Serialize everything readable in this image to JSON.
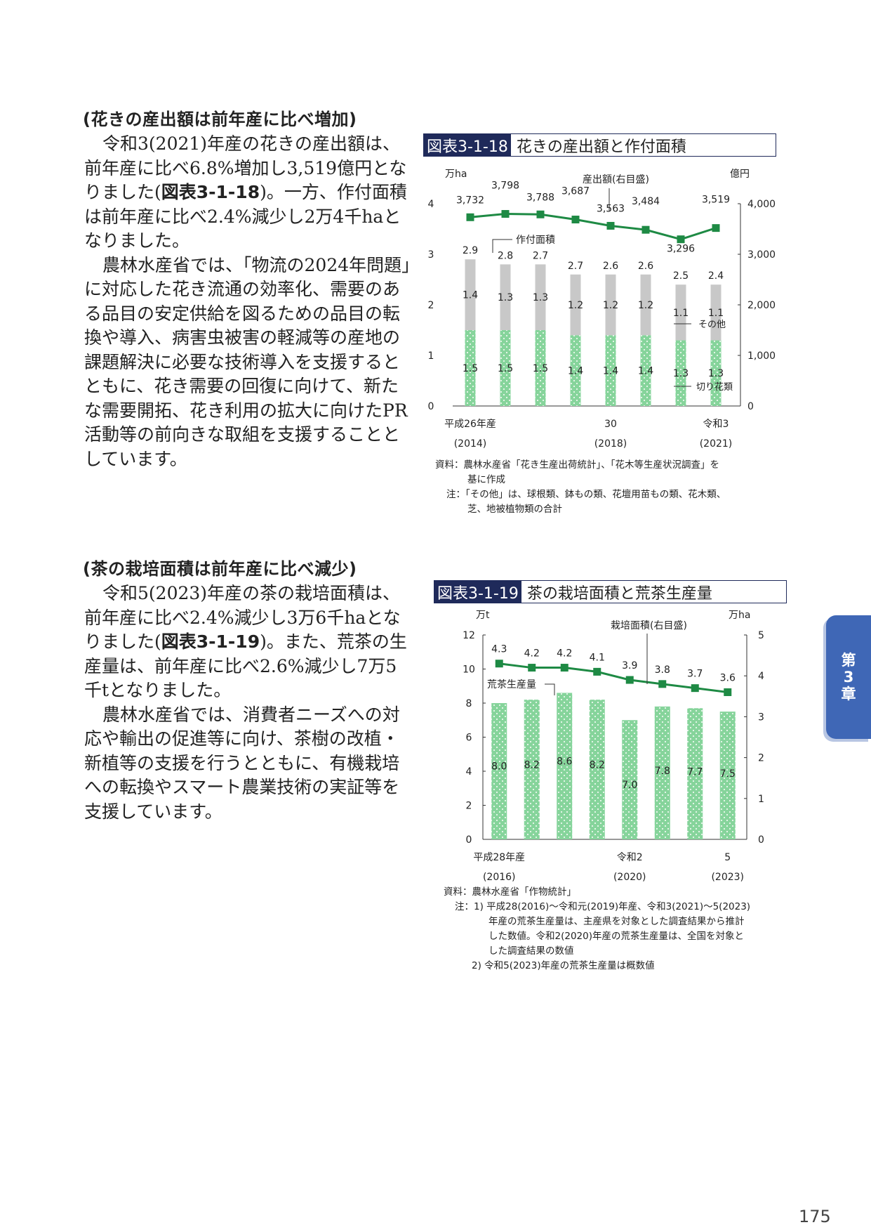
{
  "section1": {
    "heading": "(花きの産出額は前年産に比べ増加)",
    "p1_a": "令和3(2021)年産の花きの産出額は、前年産に比べ6.8%増加し3,519億円となりました(",
    "p1_link": "図表3-1-18",
    "p1_b": ")。一方、作付面積は前年産に比べ2.4%減少し2万4千haとなりました。",
    "p2": "農林水産省では、「物流の2024年問題」に対応した花き流通の効率化、需要のある品目の安定供給を図るための品目の転換や導入、病害虫被害の軽減等の産地の課題解決に必要な技術導入を支援するとともに、花き需要の回復に向けて、新たな需要開拓、花き利用の拡大に向けたPR活動等の前向きな取組を支援することとしています。"
  },
  "section2": {
    "heading": "(茶の栽培面積は前年産に比べ減少)",
    "p1_a": "令和5(2023)年産の茶の栽培面積は、前年産に比べ2.4%減少し3万6千haとなりました(",
    "p1_link": "図表3-1-19",
    "p1_b": ")。また、荒茶の生産量は、前年産に比べ2.6%減少し7万5千tとなりました。",
    "p2": "農林水産省では、消費者ニーズへの対応や輸出の促進等に向け、茶樹の改植・新植等の支援を行うとともに、有機栽培への転換やスマート農業技術の実証等を支援しています。"
  },
  "figure1": {
    "number": "図表3-1-18",
    "title": "花きの産出額と作付面積",
    "source_lines": [
      "資料：農林水産省「花き生産出荷統計」、「花木等生産状況調査」を",
      "基に作成"
    ],
    "note_lines": [
      "注：「その他」は、球根類、鉢もの類、花壇用苗もの類、花木類、",
      "芝、地被植物類の合計"
    ]
  },
  "figure2": {
    "number": "図表3-1-19",
    "title": "茶の栽培面積と荒茶生産量",
    "source_lines": [
      "資料：農林水産省「作物統計」"
    ],
    "note_lines": [
      "注：1)  平成28(2016)～令和元(2019)年産、令和3(2021)～5(2023)",
      "年産の荒茶生産量は、主産県を対象とした調査結果から推計",
      "した数値。令和2(2020)年産の荒茶生産量は、全国を対象と",
      "した調査結果の数値",
      "2)  令和5(2023)年産の荒茶生産量は概数値"
    ]
  },
  "chart_data": [
    {
      "type": "bar",
      "stacked": true,
      "categories": [
        "平成26年産",
        "",
        "",
        "",
        "30",
        "",
        "",
        "令和3"
      ],
      "category_years": [
        "(2014)",
        "",
        "",
        "",
        "(2018)",
        "",
        "",
        "(2021)"
      ],
      "series": [
        {
          "name": "切り花類",
          "values": [
            1.5,
            1.5,
            1.5,
            1.4,
            1.4,
            1.4,
            1.3,
            1.3
          ],
          "color": "#86d49b"
        },
        {
          "name": "その他",
          "values": [
            1.4,
            1.3,
            1.3,
            1.2,
            1.2,
            1.2,
            1.1,
            1.1
          ],
          "color": "#c8c8c8"
        }
      ],
      "totals": [
        2.9,
        2.8,
        2.7,
        2.7,
        2.6,
        2.6,
        2.5,
        2.4
      ],
      "totals_label": "作付面積",
      "line": {
        "name": "産出額(右目盛)",
        "values": [
          3732,
          3798,
          3788,
          3687,
          3563,
          3484,
          3296,
          3519
        ],
        "labels": [
          "3,732",
          "3,798",
          "3,788",
          "3,687",
          "3,563",
          "3,484",
          "3,296",
          "3,519"
        ],
        "color": "#1e8a44"
      },
      "ylabel_left": "万ha",
      "ylabel_right": "億円",
      "ylim_left": [
        0,
        4
      ],
      "ylim_right": [
        0,
        4000
      ],
      "yticks_left": [
        "0",
        "1",
        "2",
        "3",
        "4"
      ],
      "yticks_right": [
        "0",
        "1,000",
        "2,000",
        "3,000",
        "4,000"
      ]
    },
    {
      "type": "bar",
      "categories": [
        "平成28年産",
        "",
        "",
        "",
        "令和2",
        "",
        "",
        "5"
      ],
      "category_years": [
        "(2016)",
        "",
        "",
        "",
        "(2020)",
        "",
        "",
        "(2023)"
      ],
      "series": [
        {
          "name": "荒茶生産量",
          "values": [
            8.0,
            8.2,
            8.6,
            8.2,
            7.0,
            7.8,
            7.7,
            7.5
          ],
          "labels": [
            "8.0",
            "8.2",
            "8.6",
            "8.2",
            "7.0",
            "7.8",
            "7.7",
            "7.5"
          ],
          "color": "#86d49b"
        }
      ],
      "line": {
        "name": "栽培面積(右目盛)",
        "values": [
          4.3,
          4.2,
          4.2,
          4.1,
          3.9,
          3.8,
          3.7,
          3.6
        ],
        "labels": [
          "4.3",
          "4.2",
          "4.2",
          "4.1",
          "3.9",
          "3.8",
          "3.7",
          "3.6"
        ],
        "color": "#1e8a44"
      },
      "ylabel_left": "万t",
      "ylabel_right": "万ha",
      "ylim_left": [
        0,
        12
      ],
      "ylim_right": [
        0,
        5
      ],
      "yticks_left": [
        "0",
        "2",
        "4",
        "6",
        "8",
        "10",
        "12"
      ],
      "yticks_right": [
        "0",
        "1",
        "2",
        "3",
        "4",
        "5"
      ]
    }
  ],
  "sidebar": {
    "chapter_1": "第",
    "chapter_2": "3",
    "chapter_3": "章"
  },
  "page_number": "175"
}
